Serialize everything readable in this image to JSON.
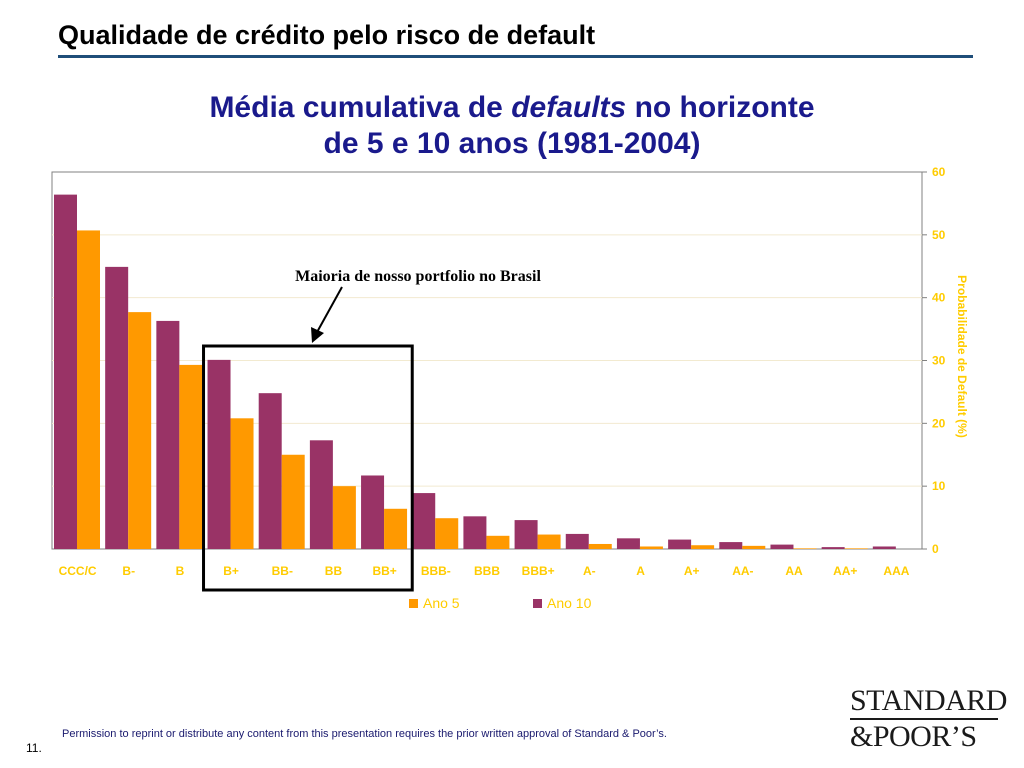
{
  "page": {
    "title": "Qualidade de crédito pelo risco de default",
    "page_number": "11.",
    "footer_note": "Permission to reprint or distribute any content from this presentation requires the prior written approval of Standard & Poor’s.",
    "logo_line1": "STANDARD",
    "logo_line2": "&POOR’S"
  },
  "chart_title": {
    "prefix": "Média cumulativa de ",
    "emphasis": "defaults",
    "suffix": " no horizonte",
    "line2": "de 5 e 10 anos (1981-2004)"
  },
  "annotation": {
    "text": "Maioria de nosso portfolio no Brasil"
  },
  "colors": {
    "ano5": "#FF9900",
    "ano10": "#993366",
    "axis_text": "#FFCC00",
    "title": "#1a1a8c"
  },
  "chart_data": {
    "type": "bar",
    "categories": [
      "CCC/C",
      "B-",
      "B",
      "B+",
      "BB-",
      "BB",
      "BB+",
      "BBB-",
      "BBB",
      "BBB+",
      "A-",
      "A",
      "A+",
      "AA-",
      "AA",
      "AA+",
      "AAA"
    ],
    "series": [
      {
        "name": "Ano 10",
        "values": [
          56.4,
          44.9,
          36.3,
          30.1,
          24.8,
          17.3,
          11.7,
          8.9,
          5.2,
          4.6,
          2.4,
          1.7,
          1.5,
          1.1,
          0.7,
          0.3,
          0.4
        ]
      },
      {
        "name": "Ano 5",
        "values": [
          50.7,
          37.7,
          29.3,
          20.8,
          15.0,
          10.0,
          6.4,
          4.9,
          2.1,
          2.3,
          0.8,
          0.4,
          0.6,
          0.5,
          0.1,
          0.1,
          0.0
        ]
      }
    ],
    "legend_order": [
      "Ano 5",
      "Ano 10"
    ],
    "ylabel": "Probabilidade de Default (%)",
    "ylim": [
      0,
      60
    ],
    "yticks": [
      0,
      10,
      20,
      30,
      40,
      50,
      60
    ],
    "y_axis_side": "right",
    "grid": true,
    "legend_position": "bottom"
  }
}
